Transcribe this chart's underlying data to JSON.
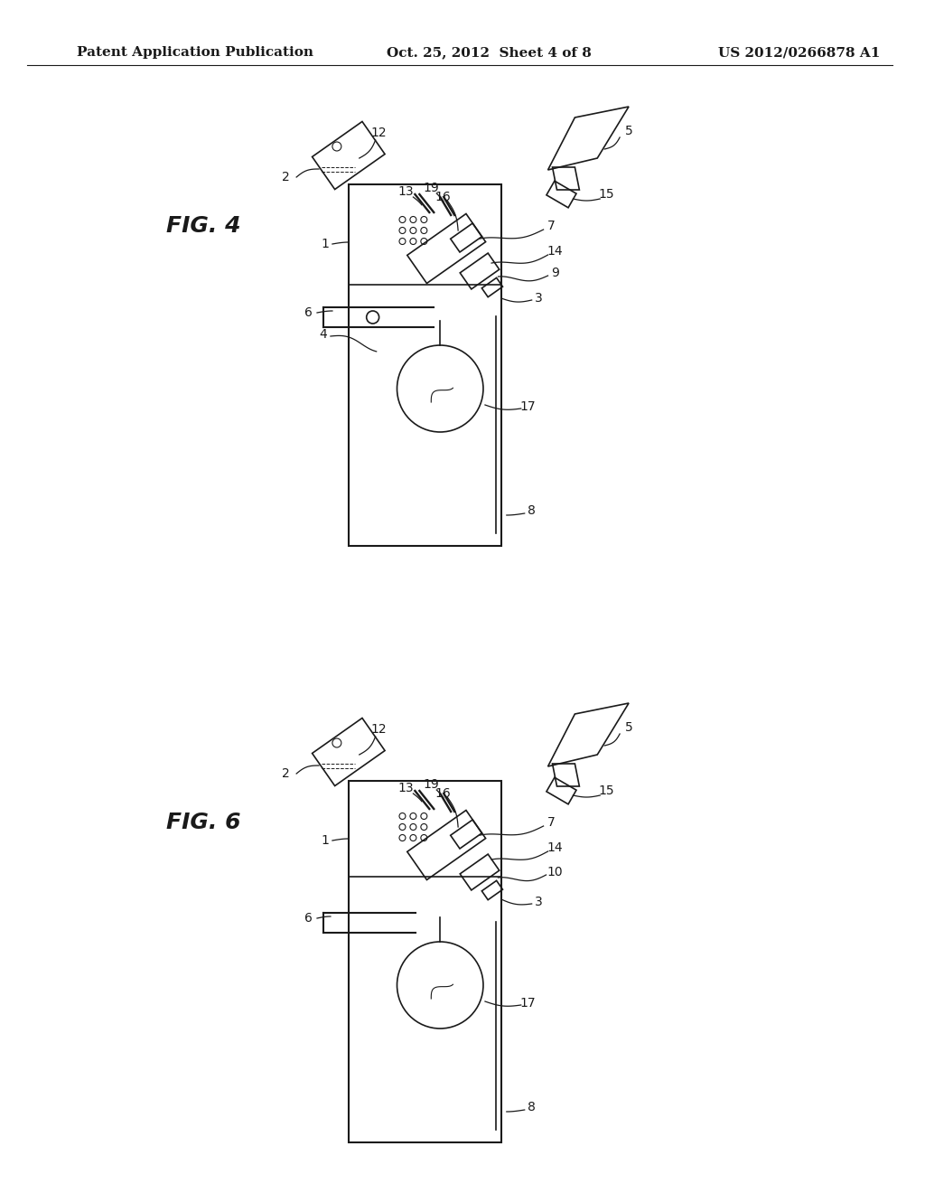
{
  "bg_color": "#ffffff",
  "header_left": "Patent Application Publication",
  "header_center": "Oct. 25, 2012  Sheet 4 of 8",
  "header_right": "US 2012/0266878 A1",
  "fig4_label": "FIG. 4",
  "fig6_label": "FIG. 6",
  "line_color": "#1a1a1a",
  "label_color": "#1a1a1a",
  "font_size_header": 11,
  "font_size_fig": 18,
  "font_size_label": 10
}
